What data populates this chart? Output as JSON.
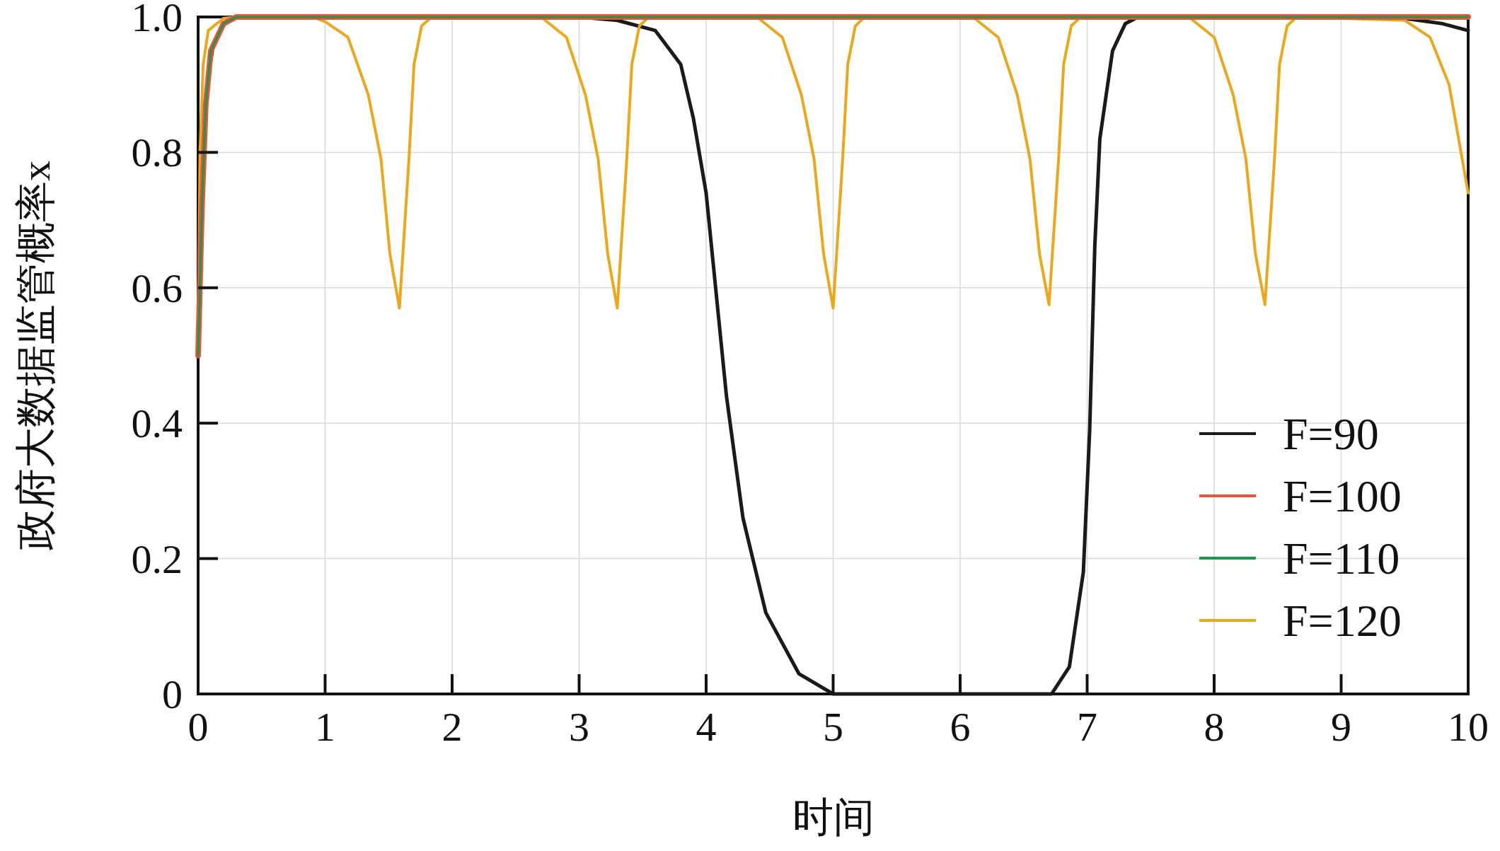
{
  "chart_data": {
    "type": "line",
    "xlabel": "时间",
    "ylabel": "政府大数据监管概率x",
    "xlim": [
      0,
      10
    ],
    "ylim": [
      0,
      1
    ],
    "xticks": [
      0,
      1,
      2,
      3,
      4,
      5,
      6,
      7,
      8,
      9,
      10
    ],
    "yticks": [
      0,
      0.2,
      0.4,
      0.6,
      0.8,
      {
        "value": 1,
        "label": "1.0"
      }
    ],
    "grid": true,
    "legend": "bottom right",
    "series": [
      {
        "name": "F=90",
        "color": "#1a1a1a",
        "x": [
          0,
          0.03,
          0.07,
          0.12,
          0.2,
          0.3,
          1,
          2,
          3,
          3.3,
          3.6,
          3.8,
          3.9,
          4.0,
          4.16,
          4.29,
          4.47,
          4.73,
          5.0,
          5.5,
          6.0,
          6.5,
          6.72,
          6.86,
          6.97,
          7.02,
          7.06,
          7.1,
          7.2,
          7.3,
          7.4,
          8,
          9,
          9.5,
          9.8,
          10
        ],
        "values": [
          0.5,
          0.75,
          0.9,
          0.96,
          0.99,
          1.0,
          1.0,
          1.0,
          1.0,
          0.995,
          0.98,
          0.93,
          0.85,
          0.74,
          0.44,
          0.26,
          0.12,
          0.03,
          0.0,
          0.0,
          0.0,
          0.0,
          0.0,
          0.04,
          0.18,
          0.39,
          0.66,
          0.82,
          0.95,
          0.99,
          1.0,
          1.0,
          1.0,
          0.998,
          0.99,
          0.98
        ]
      },
      {
        "name": "F=100",
        "color": "#e8553a",
        "x": [
          0,
          0.03,
          0.06,
          0.1,
          0.2,
          0.3,
          10
        ],
        "values": [
          0.5,
          0.72,
          0.87,
          0.95,
          0.99,
          1.0,
          1.0
        ]
      },
      {
        "name": "F=110",
        "color": "#1a9850",
        "x": [
          0,
          0.03,
          0.06,
          0.1,
          0.2,
          0.3,
          10
        ],
        "values": [
          0.5,
          0.72,
          0.87,
          0.95,
          0.99,
          1.0,
          1.0
        ]
      },
      {
        "name": "F=120",
        "color": "#e8a820",
        "x": [
          0,
          0.015,
          0.04,
          0.08,
          0.2,
          0.3,
          0.9,
          1.0,
          1.18,
          1.34,
          1.44,
          1.51,
          1.585,
          1.66,
          1.7,
          1.76,
          1.84,
          2.7,
          2.9,
          3.05,
          3.15,
          3.225,
          3.3,
          3.375,
          3.415,
          3.475,
          3.55,
          4.4,
          4.6,
          4.75,
          4.85,
          4.925,
          5.0,
          5.075,
          5.115,
          5.175,
          5.25,
          6.1,
          6.3,
          6.45,
          6.55,
          6.625,
          6.7,
          6.775,
          6.815,
          6.875,
          6.95,
          7.8,
          8.0,
          8.15,
          8.25,
          8.325,
          8.4,
          8.475,
          8.515,
          8.575,
          8.65,
          9.5,
          9.7,
          9.85,
          10
        ],
        "values": [
          0.5,
          0.8,
          0.93,
          0.98,
          0.998,
          1.0,
          1.0,
          0.993,
          0.97,
          0.885,
          0.79,
          0.65,
          0.57,
          0.79,
          0.93,
          0.987,
          1.0,
          1.0,
          0.97,
          0.885,
          0.79,
          0.65,
          0.57,
          0.79,
          0.93,
          0.987,
          1.0,
          1.0,
          0.97,
          0.885,
          0.79,
          0.65,
          0.57,
          0.79,
          0.93,
          0.987,
          1.0,
          1.0,
          0.97,
          0.885,
          0.79,
          0.65,
          0.575,
          0.79,
          0.93,
          0.987,
          1.0,
          1.0,
          0.97,
          0.885,
          0.79,
          0.65,
          0.575,
          0.79,
          0.93,
          0.987,
          1.0,
          0.995,
          0.97,
          0.9,
          0.74
        ]
      }
    ]
  }
}
